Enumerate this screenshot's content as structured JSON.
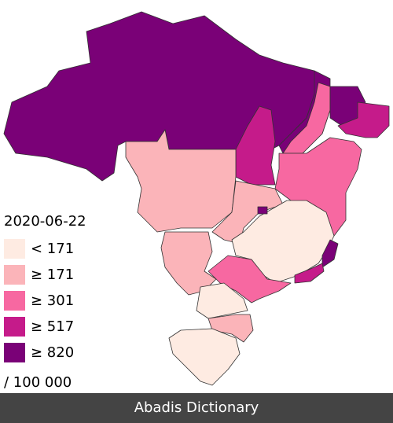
{
  "legend": {
    "title": "2020-06-22",
    "items": [
      {
        "label": "< 171",
        "color": "#feebe2"
      },
      {
        "label": "≥ 171",
        "color": "#fbb4b9"
      },
      {
        "label": "≥ 301",
        "color": "#f768a1"
      },
      {
        "label": "≥ 517",
        "color": "#c51b8a"
      },
      {
        "label": "≥ 820",
        "color": "#7a0177"
      }
    ],
    "unit": "/ 100 000"
  },
  "footer": "Abadis Dictionary"
}
